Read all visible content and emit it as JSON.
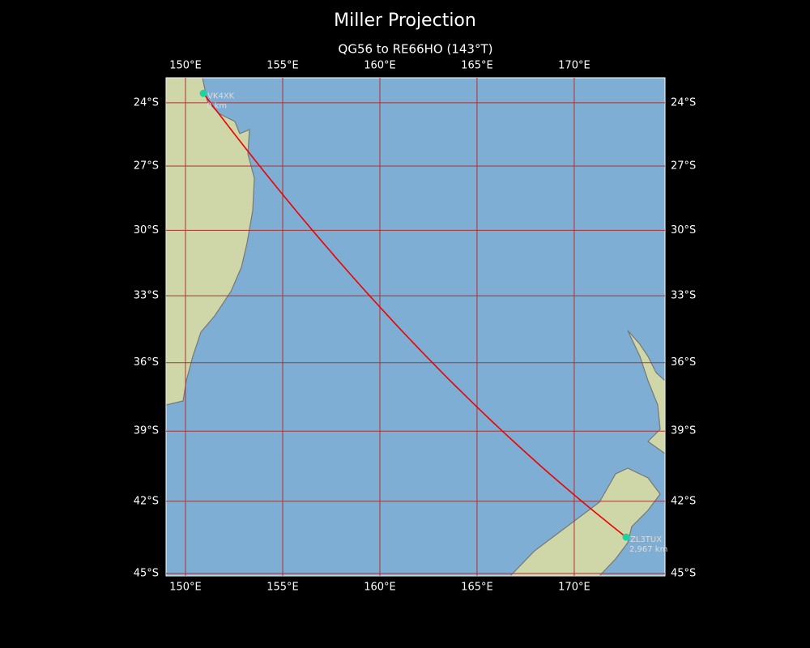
{
  "title": "Miller Projection",
  "subtitle": "QG56 to RE66HO (143°T)",
  "map": {
    "lon_range": [
      149,
      174.67
    ],
    "lat_range": [
      -22.8,
      -45.1
    ]
  },
  "lon_ticks": [
    {
      "value": 150,
      "label": "150°E"
    },
    {
      "value": 155,
      "label": "155°E"
    },
    {
      "value": 160,
      "label": "160°E"
    },
    {
      "value": 165,
      "label": "165°E"
    },
    {
      "value": 170,
      "label": "170°E"
    }
  ],
  "lat_ticks": [
    {
      "value": -24,
      "label": "24°S"
    },
    {
      "value": -27,
      "label": "27°S"
    },
    {
      "value": -30,
      "label": "30°S"
    },
    {
      "value": -33,
      "label": "33°S"
    },
    {
      "value": -36,
      "label": "36°S"
    },
    {
      "value": -39,
      "label": "39°S"
    },
    {
      "value": -42,
      "label": "42°S"
    },
    {
      "value": -45,
      "label": "45°S"
    }
  ],
  "stations": [
    {
      "label": "VK4XK",
      "distance": "0 km",
      "lon": 150.92,
      "lat": -23.55
    },
    {
      "label": "ZL3TUX",
      "distance": "2,967 km",
      "lon": 172.67,
      "lat": -43.5
    }
  ]
}
